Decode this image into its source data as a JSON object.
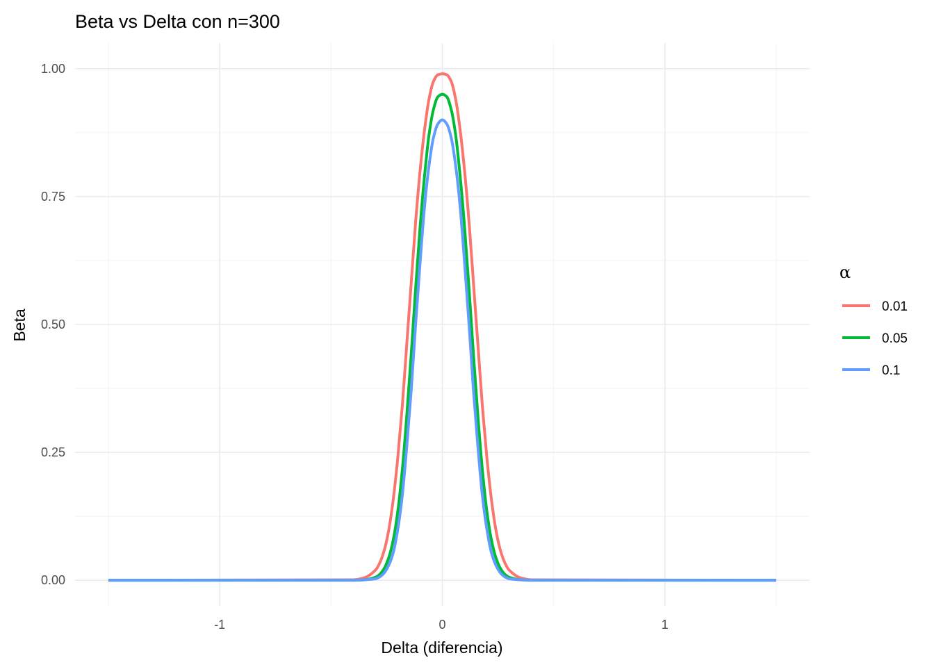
{
  "chart_data": {
    "type": "line",
    "title": "Beta vs Delta con n=300",
    "xlabel": "Delta (diferencia)",
    "ylabel": "Beta",
    "xlim": [
      -1.5,
      1.5
    ],
    "ylim": [
      0,
      1
    ],
    "x_ticks": [
      -1,
      0,
      1
    ],
    "x_tick_labels": [
      "-1",
      "0",
      "1"
    ],
    "y_ticks": [
      0,
      0.25,
      0.5,
      0.75,
      1
    ],
    "y_tick_labels": [
      "0.00",
      "0.25",
      "0.50",
      "0.75",
      "1.00"
    ],
    "grid": true,
    "legend": {
      "title": "α",
      "placement": "right"
    },
    "x": [
      -1.5,
      -0.4,
      -0.35,
      -0.3,
      -0.28,
      -0.26,
      -0.24,
      -0.22,
      -0.2,
      -0.18,
      -0.16,
      -0.14,
      -0.12,
      -0.1,
      -0.08,
      -0.06,
      -0.04,
      -0.02,
      0,
      0.02,
      0.04,
      0.06,
      0.08,
      0.1,
      0.12,
      0.14,
      0.16,
      0.18,
      0.2,
      0.22,
      0.24,
      0.26,
      0.28,
      0.3,
      0.35,
      0.4,
      1.5
    ],
    "series": [
      {
        "name": "0.01",
        "color": "#F8766D",
        "values": [
          0,
          0.001,
          0.005,
          0.02,
          0.035,
          0.06,
          0.1,
          0.16,
          0.24,
          0.34,
          0.46,
          0.58,
          0.7,
          0.8,
          0.88,
          0.94,
          0.975,
          0.988,
          0.99,
          0.988,
          0.975,
          0.94,
          0.88,
          0.8,
          0.7,
          0.58,
          0.46,
          0.34,
          0.24,
          0.16,
          0.1,
          0.06,
          0.035,
          0.02,
          0.005,
          0.001,
          0
        ]
      },
      {
        "name": "0.05",
        "color": "#00BA38",
        "values": [
          0,
          0,
          0.001,
          0.006,
          0.012,
          0.024,
          0.045,
          0.08,
          0.135,
          0.215,
          0.32,
          0.44,
          0.57,
          0.69,
          0.79,
          0.87,
          0.92,
          0.945,
          0.95,
          0.945,
          0.92,
          0.87,
          0.79,
          0.69,
          0.57,
          0.44,
          0.32,
          0.215,
          0.135,
          0.08,
          0.045,
          0.024,
          0.012,
          0.006,
          0.001,
          0,
          0
        ]
      },
      {
        "name": "0.1",
        "color": "#619CFF",
        "values": [
          0,
          0,
          0.001,
          0.003,
          0.007,
          0.015,
          0.03,
          0.055,
          0.1,
          0.165,
          0.26,
          0.37,
          0.5,
          0.62,
          0.73,
          0.81,
          0.865,
          0.892,
          0.9,
          0.892,
          0.865,
          0.81,
          0.73,
          0.62,
          0.5,
          0.37,
          0.26,
          0.165,
          0.1,
          0.055,
          0.03,
          0.015,
          0.007,
          0.003,
          0.001,
          0,
          0
        ]
      }
    ]
  }
}
